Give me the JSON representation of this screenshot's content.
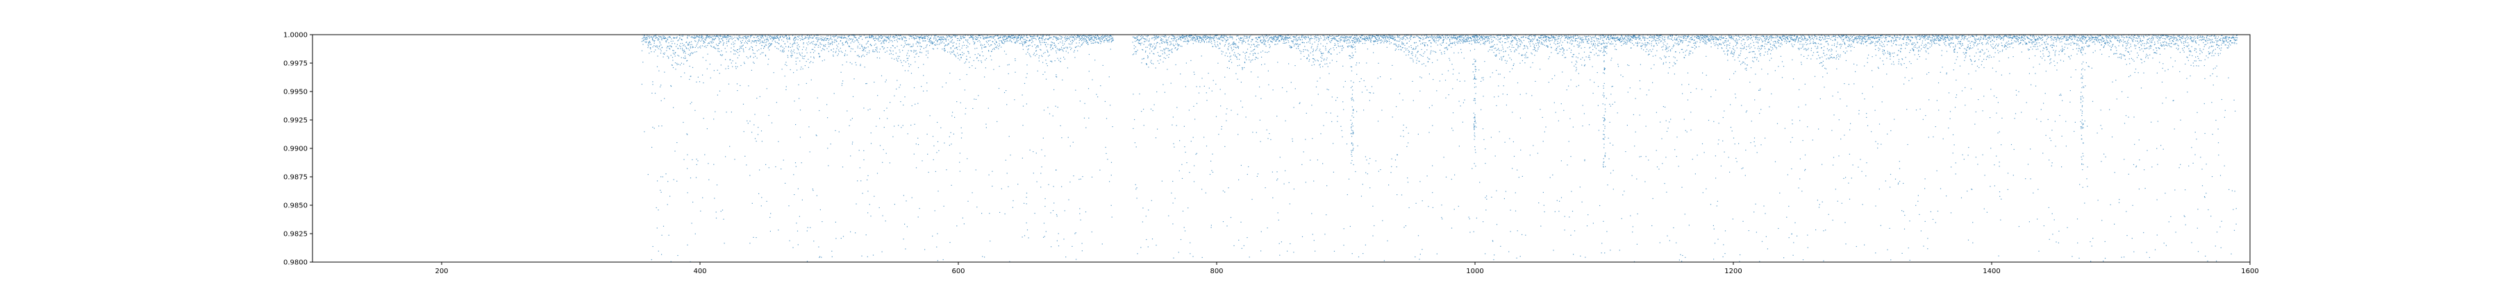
{
  "chart_data": {
    "type": "scatter",
    "title": "",
    "xlabel": "",
    "ylabel": "",
    "xlim": [
      100,
      1600
    ],
    "ylim": [
      0.98,
      1.0
    ],
    "x_ticks": [
      200,
      400,
      600,
      800,
      1000,
      1200,
      1400,
      1600
    ],
    "x_tick_labels": [
      "200",
      "400",
      "600",
      "800",
      "1000",
      "1200",
      "1400",
      "1600"
    ],
    "y_ticks": [
      0.98,
      0.9825,
      0.985,
      0.9875,
      0.99,
      0.9925,
      0.995,
      0.9975,
      1.0
    ],
    "y_tick_labels": [
      "0.9800",
      "0.9825",
      "0.9850",
      "0.9875",
      "0.9900",
      "0.9925",
      "0.9950",
      "0.9975",
      "1.0000"
    ],
    "grid": false,
    "legend": "none",
    "marker_color": "#1f77b4",
    "series": [
      {
        "data_x_range": [
          355,
          1590
        ],
        "data_gap": [
          720,
          735
        ],
        "dip_centers": [
          380,
          430,
          480,
          520,
          560,
          610,
          670,
          750,
          820,
          880,
          960,
          1030,
          1080,
          1150,
          1210,
          1270,
          1330,
          1390,
          1450,
          1510,
          1560
        ],
        "description_values": "dense band of normalized flux values between ~0.9975 and 1.0000 with sparse outliers down to 0.9800"
      }
    ]
  }
}
